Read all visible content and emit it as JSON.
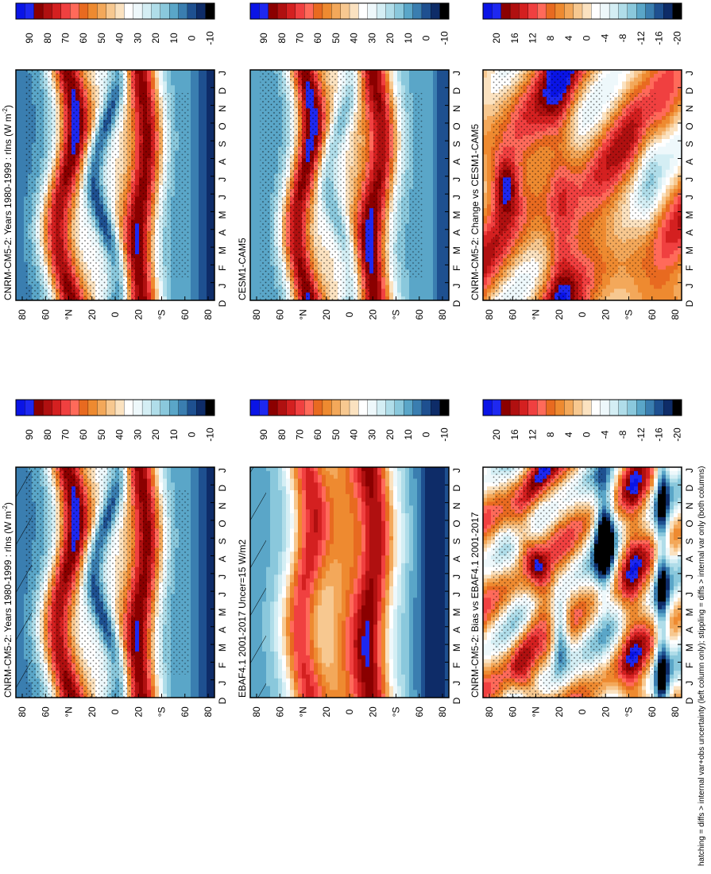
{
  "chart_data": {
    "type": "heatmap",
    "orientation": "figure rotated 90 degrees counter-clockwise",
    "month_labels": [
      "D",
      "J",
      "F",
      "M",
      "A",
      "M",
      "J",
      "J",
      "A",
      "S",
      "O",
      "N",
      "D",
      "J"
    ],
    "lat_labels": [
      "80",
      "60",
      "°N",
      "20",
      "0",
      "20",
      "°S",
      "60",
      "80"
    ],
    "footnote": "hatching = diffs > internal var+obs uncertainty (left column only); stippling = diffs > internal var only (both columns)",
    "panels": [
      {
        "id": "p1",
        "title": "CNRM-CM5-2: Years 1980-1999 : rlns (W m",
        "title_sup": "-2",
        "title_end": ")",
        "colorbar": "abs",
        "hatch": true,
        "stipple": true,
        "field": "model"
      },
      {
        "id": "p2",
        "title": "EBAF4.1 2001-2017 Uncer=15 W/m2",
        "colorbar": "abs",
        "hatch": true,
        "stipple": false,
        "field": "obs"
      },
      {
        "id": "p3",
        "title": "CNRM-CM5-2: Bias vs EBAF4.1 2001-2017",
        "colorbar": "diff",
        "hatch": false,
        "stipple": true,
        "field": "bias"
      },
      {
        "id": "p4",
        "title": "CNRM-CM5-2: Years 1980-1999 : rlns (W m",
        "title_sup": "-2",
        "title_end": ")",
        "colorbar": "abs",
        "hatch": false,
        "stipple": true,
        "field": "model"
      },
      {
        "id": "p5",
        "title": "CESM1-CAM5",
        "colorbar": "abs",
        "hatch": false,
        "stipple": true,
        "field": "model2"
      },
      {
        "id": "p6",
        "title": "CNRM-CM5-2: Change vs CESM1-CAM5",
        "colorbar": "diff",
        "hatch": false,
        "stipple": true,
        "field": "change"
      }
    ],
    "colorbars": {
      "abs": {
        "labels": [
          "90",
          "80",
          "70",
          "60",
          "50",
          "40",
          "30",
          "20",
          "10",
          "0",
          "-10"
        ],
        "levels": [
          95,
          90,
          85,
          80,
          75,
          70,
          65,
          60,
          55,
          50,
          45,
          40,
          35,
          30,
          25,
          20,
          15,
          10,
          5,
          0,
          -5,
          -10
        ],
        "colors": [
          "#0a14e6",
          "#1e28f0",
          "#8b0000",
          "#b01010",
          "#d42020",
          "#f04040",
          "#ff6a5a",
          "#e86a20",
          "#ee8a30",
          "#f3a85a",
          "#f7c890",
          "#fbe2c0",
          "#ffffff",
          "#eef8fb",
          "#d4eef4",
          "#b0dde9",
          "#8ac8dc",
          "#5aa6c8",
          "#3a7eb0",
          "#1e5090",
          "#0e2c68",
          "#000000"
        ]
      },
      "diff": {
        "labels": [
          "20",
          "16",
          "12",
          "8",
          "4",
          "0",
          "-4",
          "-8",
          "-12",
          "-16",
          "-20"
        ],
        "levels": [
          22,
          20,
          18,
          16,
          14,
          12,
          10,
          8,
          6,
          4,
          2,
          0,
          -2,
          -4,
          -6,
          -8,
          -10,
          -12,
          -14,
          -16,
          -18,
          -20
        ],
        "colors": [
          "#0a14e6",
          "#1e28f0",
          "#8b0000",
          "#b01010",
          "#d42020",
          "#f04040",
          "#ff6a5a",
          "#e86a20",
          "#ee8a30",
          "#f3a85a",
          "#f7c890",
          "#fbe2c0",
          "#ffffff",
          "#eef8fb",
          "#d4eef4",
          "#b0dde9",
          "#8ac8dc",
          "#5aa6c8",
          "#3a7eb0",
          "#1e5090",
          "#0e2c68",
          "#000000"
        ]
      }
    }
  }
}
